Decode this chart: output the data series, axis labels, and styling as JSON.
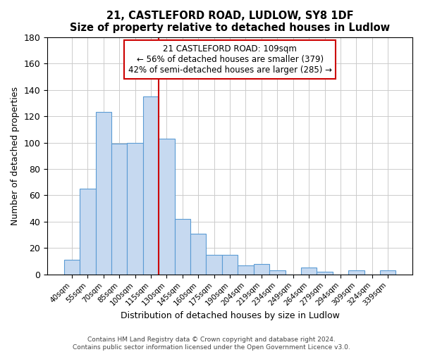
{
  "title": "21, CASTLEFORD ROAD, LUDLOW, SY8 1DF",
  "subtitle": "Size of property relative to detached houses in Ludlow",
  "xlabel": "Distribution of detached houses by size in Ludlow",
  "ylabel": "Number of detached properties",
  "bar_labels": [
    "40sqm",
    "55sqm",
    "70sqm",
    "85sqm",
    "100sqm",
    "115sqm",
    "130sqm",
    "145sqm",
    "160sqm",
    "175sqm",
    "190sqm",
    "204sqm",
    "219sqm",
    "234sqm",
    "249sqm",
    "264sqm",
    "279sqm",
    "294sqm",
    "309sqm",
    "324sqm",
    "339sqm"
  ],
  "bar_heights": [
    11,
    65,
    123,
    99,
    100,
    135,
    103,
    42,
    31,
    15,
    15,
    7,
    8,
    3,
    0,
    5,
    2,
    0,
    3,
    0,
    3
  ],
  "bar_color": "#c6d9f0",
  "bar_edge_color": "#5a9bd4",
  "vline_color": "#cc0000",
  "ylim": [
    0,
    180
  ],
  "yticks": [
    0,
    20,
    40,
    60,
    80,
    100,
    120,
    140,
    160,
    180
  ],
  "annotation_title": "21 CASTLEFORD ROAD: 109sqm",
  "annotation_line1": "← 56% of detached houses are smaller (379)",
  "annotation_line2": "42% of semi-detached houses are larger (285) →",
  "footer1": "Contains HM Land Registry data © Crown copyright and database right 2024.",
  "footer2": "Contains public sector information licensed under the Open Government Licence v3.0."
}
